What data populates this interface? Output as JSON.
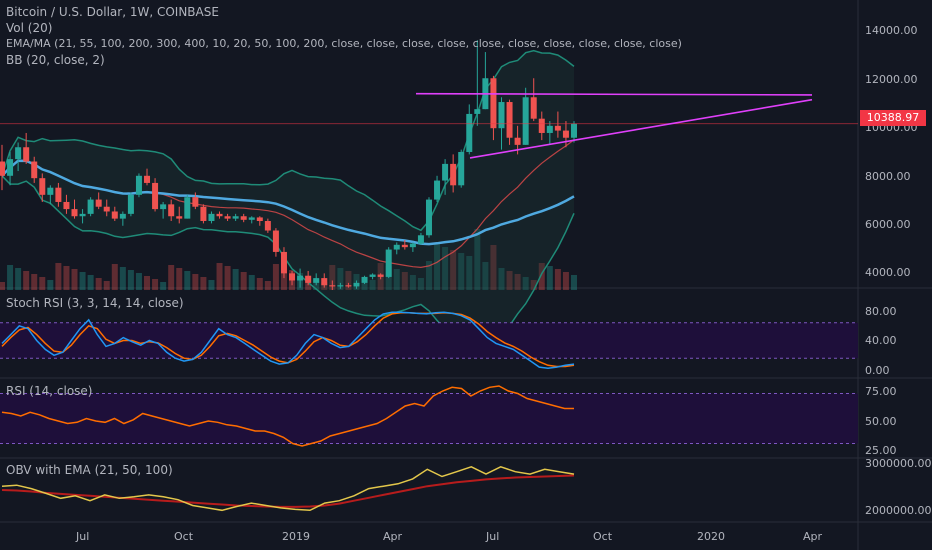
{
  "header": {
    "symbol_line": "Bitcoin / U.S. Dollar, 1W, COINBASE",
    "vol": "Vol (20)",
    "ema_ma": "EMA/MA (21, 55, 100, 200, 300, 400, 10, 20, 50, 100, 200, close, close, close, close, close, close, close, close, close, close)",
    "bb": "BB (20, close, 2)"
  },
  "panes": {
    "stoch_title": "Stoch RSI (3, 3, 14, 14, close)",
    "rsi_title": "RSI (14, close)",
    "obv_title": "OBV with EMA (21, 50, 100)"
  },
  "price_axis": [
    "14000.00",
    "12000.00",
    "10000.00",
    "8000.00",
    "6000.00",
    "4000.00"
  ],
  "last_price": "10388.97",
  "stoch_axis": [
    "80.00",
    "40.00",
    "0.00"
  ],
  "rsi_axis": [
    "75.00",
    "50.00",
    "25.00"
  ],
  "obv_axis": [
    "3000000.00",
    "2000000.00"
  ],
  "time_axis": [
    "Jul",
    "Oct",
    "2019",
    "Apr",
    "Jul",
    "Oct",
    "2020",
    "Apr"
  ],
  "colors": {
    "bg": "#131722",
    "up": "#26a69a",
    "down": "#ef5350",
    "bb_line": "#1f8b78",
    "ma_blue": "#4fa9e0",
    "ema_red": "#e34b4b",
    "trendline": "#e040fb",
    "stoch_k": "#2196f3",
    "stoch_d": "#ff6d00",
    "rsi": "#ff6d00",
    "obv": "#e3c74b",
    "obv_ema": "#b71c1c",
    "band_fill": "#1e0f3a"
  },
  "chart_data": {
    "type": "candlestick",
    "title": "Bitcoin / U.S. Dollar, 1W, COINBASE",
    "ylim": [
      3400,
      15000
    ],
    "price_range_shown": [
      4000,
      14000
    ],
    "candles_ohlc": [
      [
        8800,
        9500,
        7600,
        8200
      ],
      [
        8200,
        9200,
        7800,
        8900
      ],
      [
        8900,
        9600,
        8400,
        9400
      ],
      [
        9400,
        10000,
        8700,
        8800
      ],
      [
        8800,
        9000,
        7900,
        8100
      ],
      [
        8100,
        8300,
        7100,
        7400
      ],
      [
        7400,
        7800,
        7000,
        7700
      ],
      [
        7700,
        7900,
        6900,
        7100
      ],
      [
        7100,
        7400,
        6600,
        6800
      ],
      [
        6800,
        7200,
        6400,
        6500
      ],
      [
        6500,
        6800,
        6200,
        6600
      ],
      [
        6600,
        7300,
        6500,
        7200
      ],
      [
        7200,
        7500,
        6800,
        6900
      ],
      [
        6900,
        7200,
        6500,
        6700
      ],
      [
        6700,
        6900,
        6300,
        6400
      ],
      [
        6400,
        6700,
        6100,
        6600
      ],
      [
        6600,
        7500,
        6500,
        7400
      ],
      [
        7400,
        8300,
        7300,
        8200
      ],
      [
        8200,
        8500,
        7800,
        7900
      ],
      [
        7900,
        8100,
        6700,
        6800
      ],
      [
        6800,
        7100,
        6400,
        7000
      ],
      [
        7000,
        7200,
        6300,
        6500
      ],
      [
        6500,
        6900,
        6200,
        6400
      ],
      [
        6400,
        7400,
        6400,
        7300
      ],
      [
        7300,
        7500,
        6800,
        6900
      ],
      [
        6900,
        7000,
        6200,
        6300
      ],
      [
        6300,
        6700,
        6200,
        6600
      ],
      [
        6600,
        6700,
        6400,
        6500
      ],
      [
        6500,
        6600,
        6300,
        6400
      ],
      [
        6400,
        6600,
        6300,
        6500
      ],
      [
        6500,
        6600,
        6250,
        6350
      ],
      [
        6350,
        6500,
        6200,
        6450
      ],
      [
        6450,
        6500,
        6100,
        6300
      ],
      [
        6300,
        6400,
        5800,
        5900
      ],
      [
        5900,
        6000,
        4800,
        5000
      ],
      [
        5000,
        5200,
        3900,
        4100
      ],
      [
        4100,
        4200,
        3600,
        3800
      ],
      [
        3800,
        4300,
        3500,
        4000
      ],
      [
        4000,
        4200,
        3600,
        3700
      ],
      [
        3700,
        4100,
        3600,
        3900
      ],
      [
        3900,
        4100,
        3500,
        3600
      ],
      [
        3600,
        3800,
        3400,
        3550
      ],
      [
        3550,
        3700,
        3450,
        3600
      ],
      [
        3600,
        3700,
        3500,
        3550
      ],
      [
        3550,
        3800,
        3450,
        3700
      ],
      [
        3700,
        4000,
        3650,
        3950
      ],
      [
        3950,
        4100,
        3850,
        4050
      ],
      [
        4050,
        4100,
        3850,
        3950
      ],
      [
        3950,
        5200,
        3900,
        5100
      ],
      [
        5100,
        5400,
        4900,
        5300
      ],
      [
        5300,
        5500,
        5100,
        5200
      ],
      [
        5200,
        5400,
        5000,
        5350
      ],
      [
        5350,
        5800,
        5300,
        5700
      ],
      [
        5700,
        7300,
        5600,
        7200
      ],
      [
        7200,
        8200,
        7100,
        8000
      ],
      [
        8000,
        8900,
        7400,
        8700
      ],
      [
        8700,
        9100,
        7500,
        7800
      ],
      [
        7800,
        9300,
        7700,
        9200
      ],
      [
        9200,
        11200,
        9100,
        10800
      ],
      [
        10800,
        13900,
        10300,
        11000
      ],
      [
        11000,
        13400,
        11000,
        12300
      ],
      [
        12300,
        12400,
        9700,
        10200
      ],
      [
        10200,
        11500,
        9300,
        11300
      ],
      [
        11300,
        11400,
        9500,
        9800
      ],
      [
        9800,
        10300,
        9100,
        9500
      ],
      [
        9500,
        11900,
        9500,
        11500
      ],
      [
        11500,
        12300,
        10500,
        10600
      ],
      [
        10600,
        10900,
        9700,
        10000
      ],
      [
        10000,
        10500,
        9500,
        10300
      ],
      [
        10300,
        10900,
        9800,
        10100
      ],
      [
        10100,
        10500,
        9400,
        9800
      ],
      [
        9800,
        10500,
        9600,
        10389
      ]
    ],
    "trendlines": [
      {
        "name": "horizontal resistance",
        "points": [
          [
            "2019-Apr",
            11600
          ],
          [
            "2020-Apr",
            11600
          ]
        ]
      },
      {
        "name": "rising support",
        "points": [
          [
            "2019-Jun",
            8900
          ],
          [
            "2020-Apr",
            11400
          ]
        ]
      }
    ],
    "stoch_rsi": {
      "levels": [
        80,
        20
      ],
      "k": [
        45,
        60,
        75,
        70,
        50,
        35,
        25,
        30,
        50,
        70,
        85,
        60,
        40,
        45,
        55,
        48,
        42,
        50,
        45,
        30,
        20,
        15,
        18,
        30,
        50,
        70,
        60,
        55,
        45,
        35,
        25,
        15,
        10,
        12,
        25,
        45,
        60,
        55,
        45,
        38,
        40,
        55,
        70,
        85,
        95,
        98,
        98,
        97,
        96,
        95,
        97,
        98,
        96,
        92,
        85,
        70,
        55,
        45,
        40,
        35,
        25,
        15,
        5,
        3,
        5,
        8,
        10
      ],
      "d": [
        40,
        55,
        68,
        72,
        60,
        45,
        32,
        30,
        42,
        60,
        75,
        70,
        52,
        45,
        50,
        50,
        45,
        48,
        46,
        38,
        28,
        20,
        18,
        25,
        40,
        58,
        62,
        58,
        50,
        42,
        32,
        22,
        15,
        12,
        18,
        32,
        48,
        55,
        50,
        42,
        40,
        48,
        60,
        75,
        88,
        95,
        97,
        97,
        96,
        96,
        96,
        97,
        96,
        94,
        88,
        78,
        65,
        55,
        46,
        40,
        32,
        22,
        14,
        8,
        6,
        6,
        8
      ]
    },
    "rsi": {
      "levels": [
        70,
        30
      ],
      "values": [
        55,
        54,
        52,
        55,
        53,
        50,
        48,
        46,
        47,
        50,
        48,
        47,
        50,
        46,
        49,
        54,
        52,
        50,
        48,
        46,
        44,
        46,
        48,
        47,
        45,
        44,
        42,
        40,
        40,
        38,
        35,
        30,
        28,
        30,
        32,
        36,
        38,
        40,
        42,
        44,
        46,
        50,
        55,
        60,
        62,
        60,
        68,
        72,
        75,
        74,
        68,
        72,
        75,
        76,
        72,
        70,
        66,
        64,
        62,
        60,
        58,
        58
      ]
    },
    "obv": {
      "obv": [
        2600000,
        2620000,
        2550000,
        2450000,
        2350000,
        2400000,
        2300000,
        2420000,
        2350000,
        2380000,
        2420000,
        2380000,
        2320000,
        2200000,
        2150000,
        2100000,
        2180000,
        2250000,
        2200000,
        2150000,
        2120000,
        2100000,
        2250000,
        2300000,
        2400000,
        2550000,
        2600000,
        2650000,
        2750000,
        2950000,
        2800000,
        2900000,
        3000000,
        2850000,
        3000000,
        2900000,
        2850000,
        2950000,
        2900000,
        2850000
      ],
      "ema": [
        2520000,
        2510000,
        2490000,
        2460000,
        2440000,
        2420000,
        2400000,
        2380000,
        2360000,
        2340000,
        2320000,
        2300000,
        2280000,
        2260000,
        2240000,
        2220000,
        2200000,
        2190000,
        2180000,
        2170000,
        2170000,
        2180000,
        2200000,
        2240000,
        2300000,
        2360000,
        2420000,
        2480000,
        2540000,
        2600000,
        2640000,
        2680000,
        2710000,
        2740000,
        2760000,
        2780000,
        2790000,
        2800000,
        2810000,
        2820000
      ]
    }
  }
}
